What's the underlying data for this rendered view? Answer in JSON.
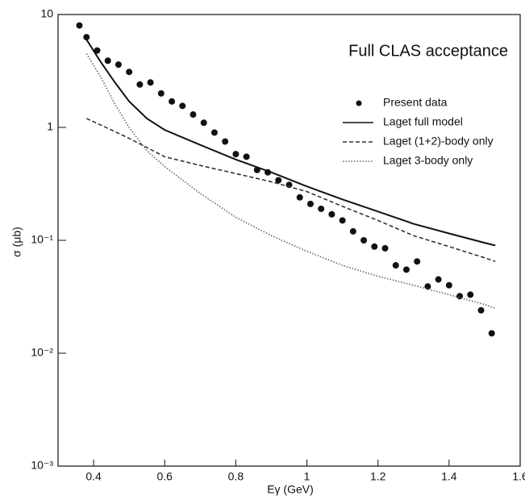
{
  "chart_data": {
    "type": "line",
    "annotation": "Full CLAS acceptance",
    "xlabel": "Eγ (GeV)",
    "ylabel": "σ (μb)",
    "xlim": [
      0.3,
      1.6
    ],
    "xticks": [
      0.4,
      0.6,
      0.8,
      1,
      1.2,
      1.4,
      1.6
    ],
    "ylim": [
      0.001,
      10
    ],
    "yscale": "log",
    "yticks": [
      {
        "value": 0.001,
        "label": "10⁻³"
      },
      {
        "value": 0.01,
        "label": "10⁻²"
      },
      {
        "value": 0.1,
        "label": "10⁻¹"
      },
      1,
      10
    ],
    "legend": "upper right",
    "series": [
      {
        "name": "Present data",
        "style": "markers",
        "color": "#111111",
        "x": [
          0.36,
          0.38,
          0.41,
          0.44,
          0.47,
          0.5,
          0.53,
          0.56,
          0.59,
          0.62,
          0.65,
          0.68,
          0.71,
          0.74,
          0.77,
          0.8,
          0.83,
          0.86,
          0.89,
          0.92,
          0.95,
          0.98,
          1.01,
          1.04,
          1.07,
          1.1,
          1.13,
          1.16,
          1.19,
          1.22,
          1.25,
          1.28,
          1.31,
          1.34,
          1.37,
          1.4,
          1.43,
          1.46,
          1.49,
          1.52
        ],
        "values": [
          8,
          6.3,
          4.8,
          3.9,
          3.6,
          3.1,
          2.4,
          2.5,
          2.0,
          1.7,
          1.55,
          1.3,
          1.1,
          0.9,
          0.75,
          0.58,
          0.55,
          0.42,
          0.4,
          0.34,
          0.31,
          0.24,
          0.21,
          0.19,
          0.17,
          0.15,
          0.12,
          0.1,
          0.088,
          0.085,
          0.06,
          0.055,
          0.065,
          0.039,
          0.045,
          0.04,
          0.032,
          0.033,
          0.024,
          0.015
        ]
      },
      {
        "name": "Laget full model",
        "style": "solid",
        "color": "#111111",
        "x": [
          0.38,
          0.42,
          0.46,
          0.5,
          0.55,
          0.6,
          0.7,
          0.8,
          0.9,
          1.0,
          1.1,
          1.2,
          1.3,
          1.4,
          1.5,
          1.53
        ],
        "values": [
          6,
          3.8,
          2.5,
          1.7,
          1.2,
          0.95,
          0.7,
          0.52,
          0.4,
          0.3,
          0.23,
          0.18,
          0.14,
          0.115,
          0.095,
          0.09
        ]
      },
      {
        "name": "Laget (1+2)-body only",
        "style": "dashed",
        "color": "#333333",
        "x": [
          0.38,
          0.45,
          0.5,
          0.6,
          0.7,
          0.8,
          0.9,
          1.0,
          1.1,
          1.2,
          1.3,
          1.4,
          1.5,
          1.53
        ],
        "values": [
          1.2,
          0.95,
          0.8,
          0.55,
          0.46,
          0.39,
          0.33,
          0.27,
          0.2,
          0.15,
          0.11,
          0.088,
          0.07,
          0.065
        ]
      },
      {
        "name": "Laget 3-body only",
        "style": "dotted",
        "color": "#666666",
        "x": [
          0.38,
          0.42,
          0.46,
          0.5,
          0.55,
          0.6,
          0.7,
          0.8,
          0.9,
          1.0,
          1.1,
          1.2,
          1.3,
          1.4,
          1.5,
          1.53
        ],
        "values": [
          4.5,
          2.8,
          1.6,
          1.0,
          0.62,
          0.45,
          0.26,
          0.16,
          0.11,
          0.08,
          0.06,
          0.048,
          0.04,
          0.033,
          0.027,
          0.025
        ]
      }
    ]
  }
}
